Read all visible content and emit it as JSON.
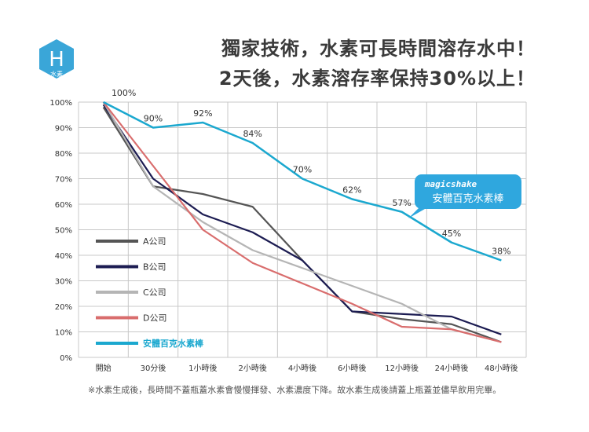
{
  "badge": {
    "letter": "H",
    "sub": "水素",
    "color": "#3aa6d8"
  },
  "title": {
    "line1": "獨家技術，水素可長時間溶存水中！",
    "line2": "2天後，水素溶存率保持30%以上！"
  },
  "callout": {
    "brand": "magicshake",
    "text": "安體百克水素棒",
    "color": "#2fa7de"
  },
  "footnote": "※水素生成後，長時間不蓋瓶蓋水素會慢慢揮發、水素濃度下降。故水素生成後請蓋上瓶蓋並儘早飲用完畢。",
  "chart_data": {
    "type": "line",
    "title": "",
    "xlabel": "",
    "ylabel": "",
    "categories": [
      "開始",
      "30分後",
      "1小時後",
      "2小時後",
      "4小時後",
      "6小時後",
      "12小時後",
      "24小時後",
      "48小時後"
    ],
    "y_ticks": [
      "0%",
      "10%",
      "20%",
      "30%",
      "40%",
      "50%",
      "60%",
      "70%",
      "80%",
      "90%",
      "100%"
    ],
    "ylim": [
      0,
      100
    ],
    "grid": true,
    "legend_position": "left",
    "series": [
      {
        "name": "A公司",
        "color": "#555555",
        "values": [
          98,
          67,
          64,
          59,
          38,
          18,
          15,
          13,
          6
        ]
      },
      {
        "name": "B公司",
        "color": "#1c1c52",
        "values": [
          99,
          70,
          56,
          49,
          38,
          18,
          17,
          16,
          9
        ]
      },
      {
        "name": "C公司",
        "color": "#b5b5b5",
        "values": [
          100,
          67,
          53,
          42,
          35,
          28,
          21,
          11,
          6
        ]
      },
      {
        "name": "D公司",
        "color": "#d96d6d",
        "values": [
          100,
          75,
          50,
          37,
          29,
          21,
          12,
          11,
          6
        ]
      },
      {
        "name": "安體百克水素棒",
        "color": "#1ba8cf",
        "values": [
          100,
          90,
          92,
          84,
          70,
          62,
          57,
          45,
          38
        ]
      }
    ],
    "data_labels": [
      "100%",
      "90%",
      "92%",
      "84%",
      "70%",
      "62%",
      "57%",
      "45%",
      "38%"
    ]
  }
}
